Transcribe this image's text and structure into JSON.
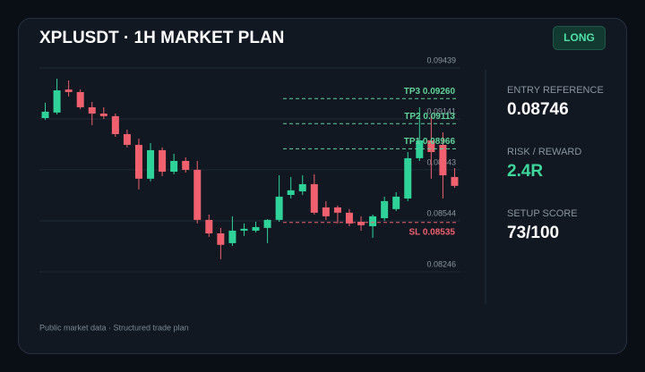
{
  "chart_data": {
    "type": "candlestick",
    "title": "XPLUSDT · 1H MARKET PLAN",
    "badge": "LONG",
    "up_color": "#2fd39a",
    "down_color": "#f0606e",
    "open": [
      0.09146,
      0.09178,
      0.09313,
      0.09298,
      0.09209,
      0.09172,
      0.09157,
      0.09052,
      0.08989,
      0.08791,
      0.08958,
      0.08832,
      0.08895,
      0.08843,
      0.0855,
      0.08471,
      0.08414,
      0.08487,
      0.08487,
      0.08503,
      0.0855,
      0.08696,
      0.08717,
      0.08759,
      0.08623,
      0.08623,
      0.08592,
      0.08539,
      0.08513,
      0.0856,
      0.08613,
      0.08675,
      0.08911,
      0.09015,
      0.08989,
      0.08801
    ],
    "close": [
      0.09183,
      0.09308,
      0.09298,
      0.09209,
      0.09172,
      0.09157,
      0.09052,
      0.08989,
      0.08791,
      0.08958,
      0.08832,
      0.08895,
      0.08843,
      0.0855,
      0.08471,
      0.08404,
      0.08487,
      0.08498,
      0.08508,
      0.0855,
      0.08686,
      0.08723,
      0.08759,
      0.08592,
      0.08571,
      0.08592,
      0.08529,
      0.08519,
      0.08571,
      0.0866,
      0.08686,
      0.08911,
      0.09015,
      0.08947,
      0.08811,
      0.08749
    ],
    "high": [
      0.09235,
      0.09376,
      0.09366,
      0.09313,
      0.0924,
      0.09209,
      0.09172,
      0.09078,
      0.09026,
      0.09,
      0.08974,
      0.08937,
      0.08916,
      0.08895,
      0.08581,
      0.08503,
      0.08571,
      0.08529,
      0.08539,
      0.08555,
      0.08811,
      0.08801,
      0.08811,
      0.08817,
      0.0866,
      0.08634,
      0.08613,
      0.08571,
      0.08581,
      0.08686,
      0.08712,
      0.08947,
      0.09209,
      0.09167,
      0.09062,
      0.08853
    ],
    "low": [
      0.09136,
      0.09167,
      0.09272,
      0.09198,
      0.09104,
      0.09141,
      0.09036,
      0.08974,
      0.08728,
      0.08775,
      0.08806,
      0.08817,
      0.08827,
      0.08529,
      0.08451,
      0.0832,
      0.08398,
      0.08456,
      0.08477,
      0.08414,
      0.08539,
      0.08675,
      0.08696,
      0.08581,
      0.0855,
      0.08529,
      0.08513,
      0.08487,
      0.08445,
      0.08545,
      0.08602,
      0.0866,
      0.08895,
      0.08791,
      0.08675,
      0.08738
    ],
    "ylim": [
      0.08246,
      0.09439
    ],
    "yticks": [
      0.09439,
      0.09141,
      0.08843,
      0.08544,
      0.08246
    ],
    "grid": true,
    "levels": [
      {
        "label": "TP3 0.09260",
        "value": 0.0926,
        "color": "#5fd39a"
      },
      {
        "label": "TP2 0.09113",
        "value": 0.09113,
        "color": "#5fd39a"
      },
      {
        "label": "TP1 0.08966",
        "value": 0.08966,
        "color": "#5fd39a"
      },
      {
        "label": "SL 0.08535",
        "value": 0.08535,
        "color": "#f0606e"
      }
    ]
  },
  "stats": [
    {
      "label": "ENTRY REFERENCE",
      "value": "0.08746",
      "color": "#ffffff"
    },
    {
      "label": "RISK / REWARD",
      "value": "2.4R",
      "color": "#3fd89c"
    },
    {
      "label": "SETUP SCORE",
      "value": "73/100",
      "color": "#ffffff"
    }
  ],
  "footer": "Public market data · Structured trade plan"
}
